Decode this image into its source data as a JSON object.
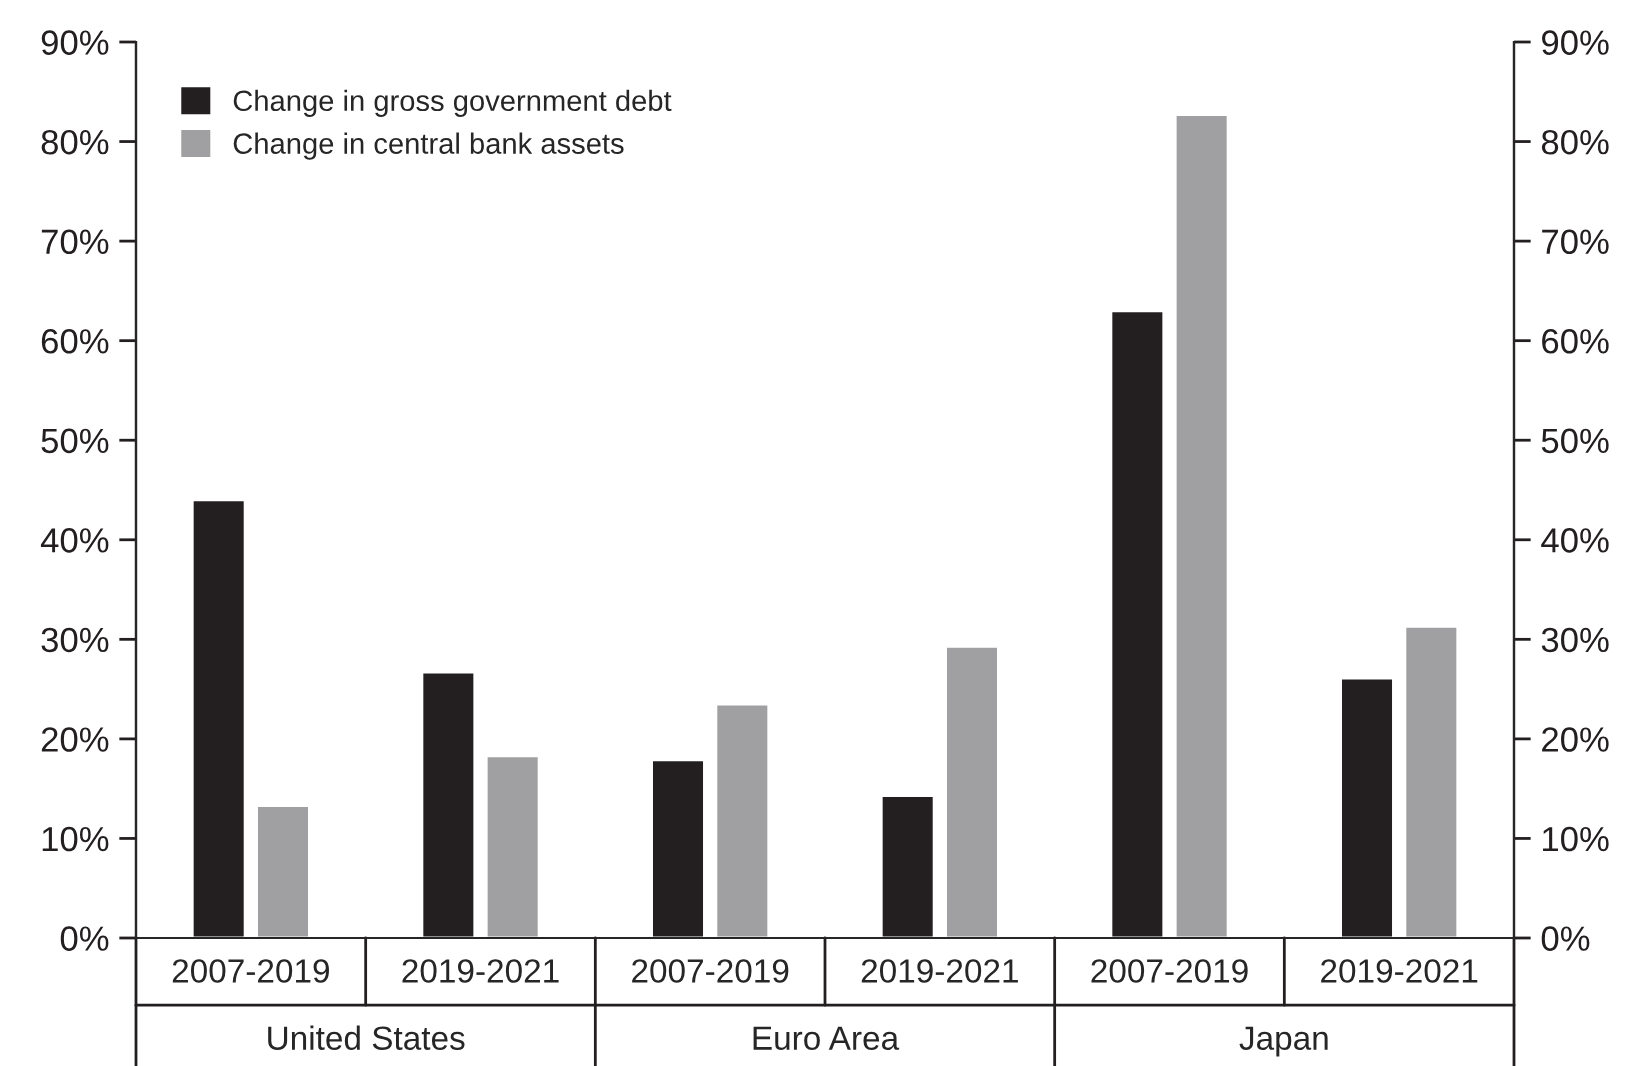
{
  "chart_data": {
    "type": "bar",
    "categories": [
      "2007-2019",
      "2019-2021",
      "2007-2019",
      "2019-2021",
      "2007-2019",
      "2019-2021"
    ],
    "series": [
      {
        "name": "Change in gross government debt",
        "color": "#231f20",
        "values": [
          44,
          26.7,
          17.9,
          14.3,
          63,
          26.1
        ]
      },
      {
        "name": "Change in central bank assets",
        "color": "#a0a0a2",
        "values": [
          13.3,
          18.3,
          23.5,
          29.3,
          82.7,
          31.3
        ]
      }
    ],
    "annotations": [
      "United States",
      "Euro Area",
      "Japan"
    ],
    "ylim": [
      0,
      90
    ],
    "yticks": [
      {
        "value": 0,
        "label": "0%"
      },
      {
        "value": 10,
        "label": "10%"
      },
      {
        "value": 20,
        "label": "20%"
      },
      {
        "value": 30,
        "label": "30%"
      },
      {
        "value": 40,
        "label": "40%"
      },
      {
        "value": 50,
        "label": "50%"
      },
      {
        "value": 60,
        "label": "60%"
      },
      {
        "value": 70,
        "label": "70%"
      },
      {
        "value": 80,
        "label": "80%"
      },
      {
        "value": 90,
        "label": "90%"
      }
    ],
    "y2lim": [
      0,
      90
    ],
    "y2ticks": [
      {
        "value": 0,
        "label": "0%"
      },
      {
        "value": 10,
        "label": "10%"
      },
      {
        "value": 20,
        "label": "20%"
      },
      {
        "value": 30,
        "label": "30%"
      },
      {
        "value": 40,
        "label": "40%"
      },
      {
        "value": 50,
        "label": "50%"
      },
      {
        "value": 60,
        "label": "60%"
      },
      {
        "value": 70,
        "label": "70%"
      },
      {
        "value": 80,
        "label": "80%"
      },
      {
        "value": 90,
        "label": "90%"
      }
    ],
    "grid": false,
    "legend": "top left"
  }
}
